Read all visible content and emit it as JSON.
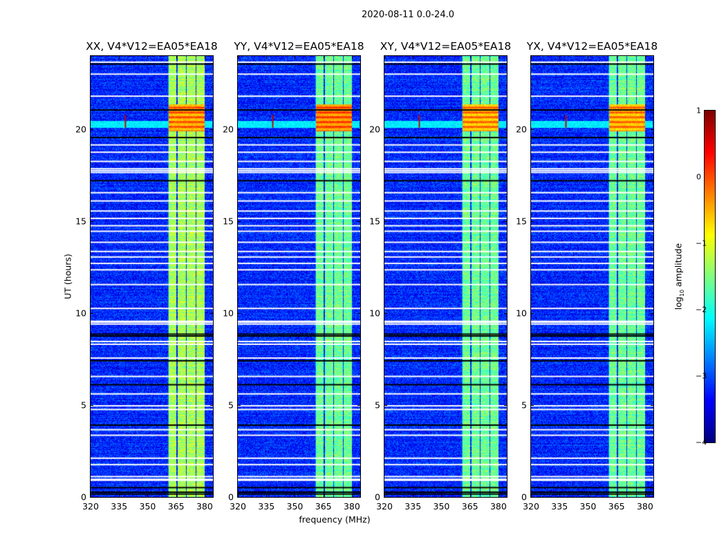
{
  "chart_data": {
    "type": "heatmap",
    "title": "2020-08-11 0.0-24.0",
    "xlabel": "frequency (MHz)",
    "ylabel": "UT (hours)",
    "xlim": [
      320,
      384.4
    ],
    "ylim": [
      0,
      24
    ],
    "xticks": [
      "320",
      "335",
      "350",
      "365",
      "380"
    ],
    "xtick_values": [
      320,
      335,
      350,
      365,
      380
    ],
    "yticks": [
      "0",
      "5",
      "10",
      "15",
      "20"
    ],
    "ytick_values": [
      0,
      5,
      10,
      15,
      20
    ],
    "panels": [
      {
        "title": "XX, V4*V12=EA05*EA18",
        "band_level": -1.3,
        "rfi_level": 0.2
      },
      {
        "title": "YY, V4*V12=EA05*EA18",
        "band_level": -1.6,
        "rfi_level": 0.3
      },
      {
        "title": "XY, V4*V12=EA05*EA18",
        "band_level": -1.6,
        "rfi_level": 0.1
      },
      {
        "title": "YX, V4*V12=EA05*EA18",
        "band_level": -1.6,
        "rfi_level": 0.1
      }
    ],
    "background_level": -3.2,
    "bright_subbands_mhz": [
      [
        361,
        365
      ],
      [
        365.5,
        370
      ],
      [
        370.5,
        375
      ],
      [
        375.5,
        380
      ]
    ],
    "rfi_burst_hours": [
      19.9,
      21.4
    ],
    "flagged_hours_white": [
      23.7,
      23.05,
      21.85,
      19.2,
      18.8,
      18.3,
      17.8,
      17.7,
      17.9,
      16.6,
      16.15,
      15.6,
      15.2,
      14.8,
      14.5,
      13.9,
      13.4,
      13.1,
      12.75,
      12.4,
      11.6,
      10.3,
      9.45,
      9.55,
      9.6,
      8.5,
      8.35,
      7.6,
      6.6,
      5.65,
      5.0,
      4.8,
      3.7,
      3.4,
      2.15,
      1.8,
      1.15,
      0.95,
      1.0
    ],
    "flagged_hours_black": [
      23.6,
      21.1,
      19.6,
      17.25,
      8.8,
      8.9,
      7.45,
      6.15,
      3.95,
      0.55,
      0.3,
      0.2
    ],
    "colorbar": {
      "label": "log10 amplitude",
      "label_main": "log",
      "label_sub": "10",
      "label_rest": " amplitude",
      "range": [
        -4,
        1
      ],
      "ticks": [
        "1",
        "0",
        "−1",
        "−2",
        "−3",
        "−4"
      ],
      "tick_values": [
        1,
        0,
        -1,
        -2,
        -3,
        -4
      ],
      "colormap": "jet"
    }
  }
}
